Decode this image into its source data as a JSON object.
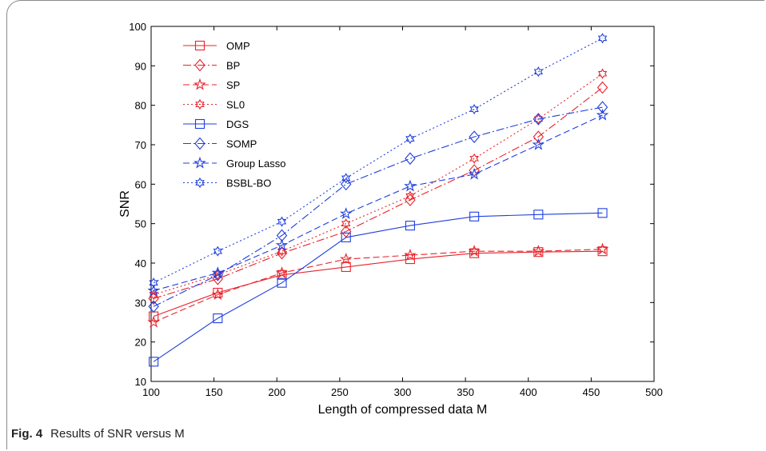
{
  "chart_data": {
    "type": "line",
    "xlabel": "Length of compressed data M",
    "ylabel": "SNR",
    "xlim": [
      100,
      500
    ],
    "ylim": [
      10,
      100
    ],
    "xticks": [
      "100",
      "150",
      "200",
      "250",
      "300",
      "350",
      "400",
      "450",
      "500"
    ],
    "yticks": [
      "10",
      "20",
      "30",
      "40",
      "50",
      "60",
      "70",
      "80",
      "90",
      "100"
    ],
    "grid": false,
    "legend_position": "top-left",
    "x": [
      102,
      153,
      204,
      255,
      306,
      357,
      408,
      459
    ],
    "series": [
      {
        "name": "OMP",
        "color": "#e8232a",
        "dash": "solid",
        "marker": "square",
        "values": [
          26.5,
          32.5,
          37,
          39,
          41,
          42.5,
          42.8,
          43
        ]
      },
      {
        "name": "BP",
        "color": "#e8232a",
        "dash": "dashdot",
        "marker": "diamond",
        "values": [
          31,
          36,
          42.5,
          48,
          56,
          63.5,
          72,
          84.5
        ]
      },
      {
        "name": "SP",
        "color": "#e8232a",
        "dash": "dashed",
        "marker": "star",
        "values": [
          25,
          32,
          37.5,
          41,
          42,
          43,
          43,
          43.5
        ]
      },
      {
        "name": "SL0",
        "color": "#e8232a",
        "dash": "dotted",
        "marker": "hexstar",
        "values": [
          32,
          37,
          43,
          50,
          57,
          66.5,
          76.5,
          88
        ]
      },
      {
        "name": "DGS",
        "color": "#1f3fe0",
        "dash": "solid",
        "marker": "square",
        "values": [
          15,
          26,
          35,
          46.5,
          49.5,
          51.8,
          52.3,
          52.7
        ]
      },
      {
        "name": "SOMP",
        "color": "#1f3fe0",
        "dash": "dashdot",
        "marker": "diamond",
        "values": [
          29,
          37,
          47,
          60,
          66.5,
          72,
          76.5,
          79.5
        ]
      },
      {
        "name": "Group Lasso",
        "color": "#1f3fe0",
        "dash": "dashed",
        "marker": "star",
        "values": [
          33,
          37.5,
          44.5,
          52.5,
          59.5,
          62.5,
          70,
          77.5
        ]
      },
      {
        "name": "BSBL-BO",
        "color": "#1f3fe0",
        "dash": "dotted",
        "marker": "hexstar",
        "values": [
          35,
          43,
          50.5,
          61.5,
          71.5,
          79,
          88.5,
          97
        ]
      }
    ]
  },
  "caption": {
    "label": "Fig. 4",
    "text": "Results of SNR versus M"
  }
}
